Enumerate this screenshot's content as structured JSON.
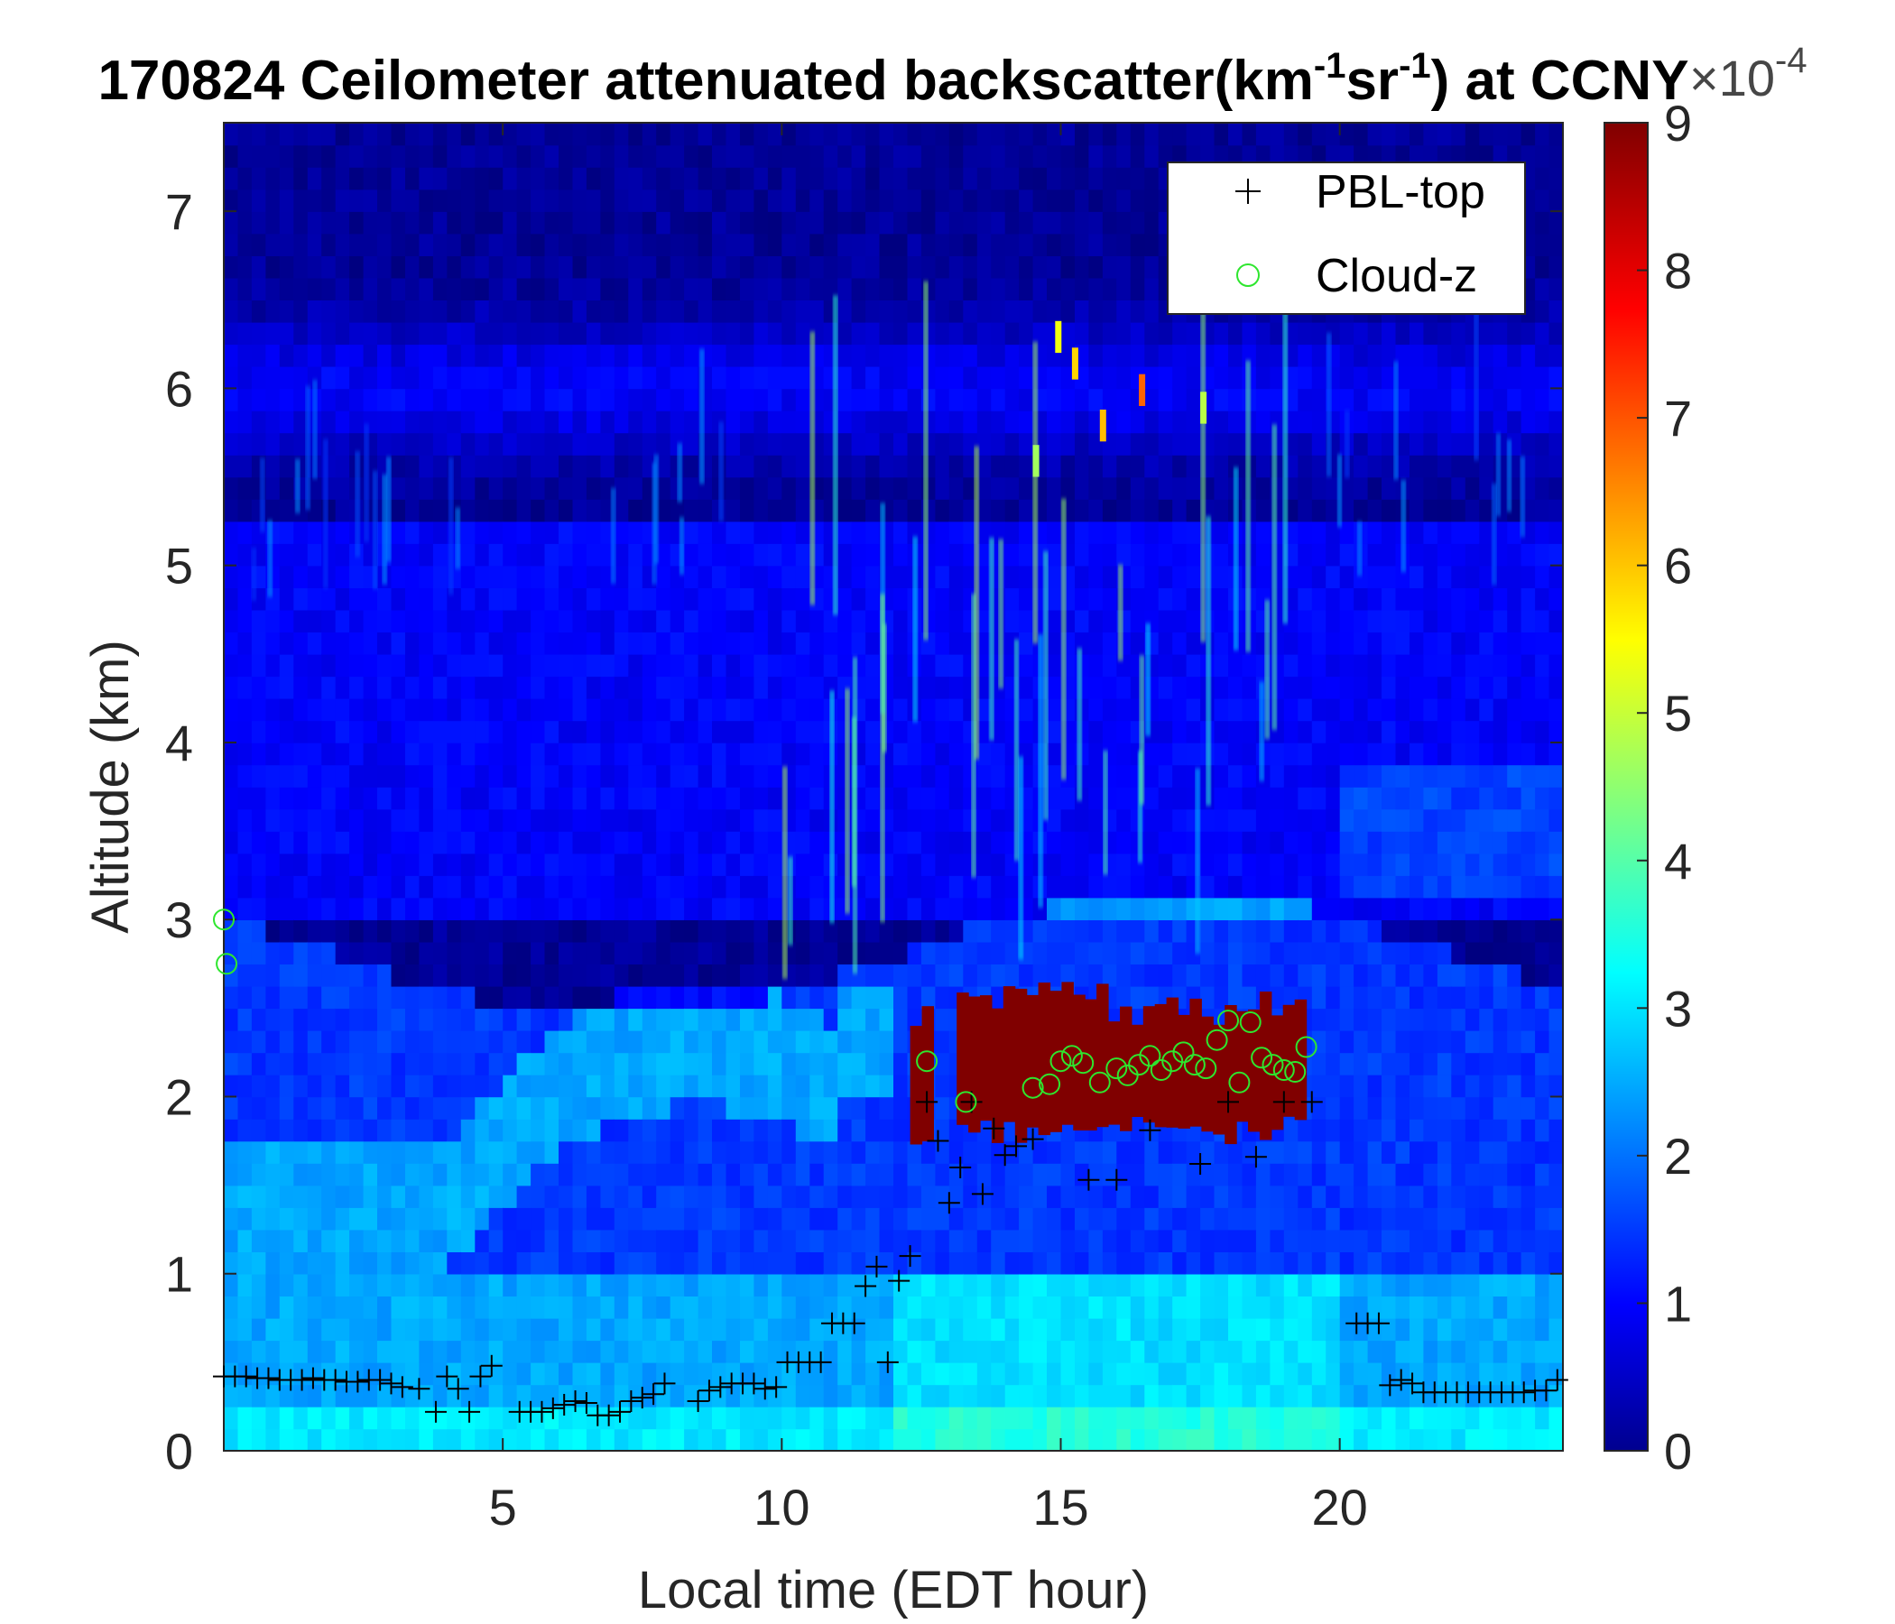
{
  "chart_data": {
    "type": "heatmap",
    "title": {
      "prefix": "170824 Ceilometer attenuated backscatter(km",
      "sup1": "-1",
      "mid": "sr",
      "sup2": "-1",
      "suffix": ") at CCNY"
    },
    "xlabel": "Local time (EDT hour)",
    "ylabel": "Altitude (km)",
    "xlim": [
      0,
      24
    ],
    "ylim": [
      0,
      7.5
    ],
    "xticks": [
      5,
      10,
      15,
      20
    ],
    "yticks": [
      0,
      1,
      2,
      3,
      4,
      5,
      6,
      7
    ],
    "colorbar": {
      "min": 0,
      "max": 9,
      "ticks": [
        0,
        1,
        2,
        3,
        4,
        5,
        6,
        7,
        8,
        9
      ],
      "exponent_label": "×10",
      "exponent": "-4",
      "colormap": "jet"
    },
    "legend": {
      "position": "top-right",
      "entries": [
        "PBL-top",
        "Cloud-z"
      ]
    },
    "colors": {
      "pbl_marker": "#000000",
      "cloud_marker": "#2ee62e",
      "cloud_block": "#800000"
    },
    "series": [
      {
        "name": "PBL-top",
        "marker": "+",
        "x": [
          0.0,
          0.2,
          0.4,
          0.6,
          0.8,
          1.0,
          1.2,
          1.4,
          1.6,
          1.8,
          2.0,
          2.2,
          2.4,
          2.6,
          2.8,
          3.0,
          3.2,
          3.5,
          3.8,
          4.0,
          4.2,
          4.4,
          4.6,
          4.8,
          5.3,
          5.5,
          5.7,
          5.9,
          6.1,
          6.3,
          6.5,
          6.7,
          6.9,
          7.1,
          7.3,
          7.5,
          7.7,
          7.9,
          8.5,
          8.7,
          8.9,
          9.1,
          9.3,
          9.5,
          9.7,
          9.9,
          10.1,
          10.3,
          10.5,
          10.7,
          10.9,
          11.1,
          11.3,
          11.5,
          11.7,
          11.9,
          12.1,
          12.3,
          12.6,
          12.8,
          13.0,
          13.2,
          13.4,
          13.6,
          13.8,
          14.0,
          14.2,
          14.5,
          15.5,
          16.0,
          16.6,
          17.5,
          18.0,
          18.5,
          19.0,
          19.5,
          20.3,
          20.5,
          20.7,
          20.9,
          21.1,
          21.3,
          21.5,
          21.7,
          21.9,
          22.1,
          22.3,
          22.5,
          22.7,
          22.9,
          23.1,
          23.3,
          23.5,
          23.7,
          23.9
        ],
        "y": [
          0.42,
          0.42,
          0.42,
          0.41,
          0.41,
          0.4,
          0.4,
          0.4,
          0.41,
          0.4,
          0.4,
          0.39,
          0.39,
          0.4,
          0.4,
          0.38,
          0.36,
          0.35,
          0.22,
          0.42,
          0.35,
          0.22,
          0.42,
          0.48,
          0.22,
          0.22,
          0.22,
          0.24,
          0.26,
          0.28,
          0.27,
          0.2,
          0.2,
          0.22,
          0.28,
          0.3,
          0.32,
          0.38,
          0.28,
          0.34,
          0.36,
          0.38,
          0.38,
          0.38,
          0.35,
          0.36,
          0.5,
          0.5,
          0.5,
          0.5,
          0.72,
          0.72,
          0.72,
          0.93,
          1.04,
          0.5,
          0.96,
          1.1,
          1.97,
          1.75,
          1.4,
          1.6,
          1.97,
          1.45,
          1.82,
          1.67,
          1.72,
          1.76,
          1.53,
          1.53,
          1.81,
          1.62,
          1.97,
          1.66,
          1.97,
          1.97,
          0.72,
          0.72,
          0.72,
          0.37,
          0.4,
          0.38,
          0.33,
          0.33,
          0.33,
          0.33,
          0.33,
          0.33,
          0.33,
          0.33,
          0.33,
          0.33,
          0.34,
          0.34,
          0.4
        ]
      },
      {
        "name": "Cloud-z",
        "marker": "o",
        "x": [
          0.0,
          0.05,
          12.6,
          13.3,
          14.5,
          14.8,
          15.0,
          15.2,
          15.4,
          15.7,
          16.0,
          16.2,
          16.4,
          16.6,
          16.8,
          17.0,
          17.2,
          17.4,
          17.6,
          17.8,
          18.0,
          18.2,
          18.4,
          18.6,
          18.8,
          19.0,
          19.2,
          19.4
        ],
        "y": [
          3.0,
          2.75,
          2.2,
          1.97,
          2.05,
          2.07,
          2.2,
          2.23,
          2.19,
          2.08,
          2.16,
          2.12,
          2.18,
          2.23,
          2.15,
          2.2,
          2.25,
          2.18,
          2.16,
          2.32,
          2.43,
          2.08,
          2.42,
          2.22,
          2.18,
          2.15,
          2.14,
          2.28
        ]
      }
    ],
    "cloud_layer": {
      "x_range": [
        12.3,
        19.4
      ],
      "bottom_km": 1.85,
      "top_km": 2.5,
      "peak_value": 9
    }
  }
}
